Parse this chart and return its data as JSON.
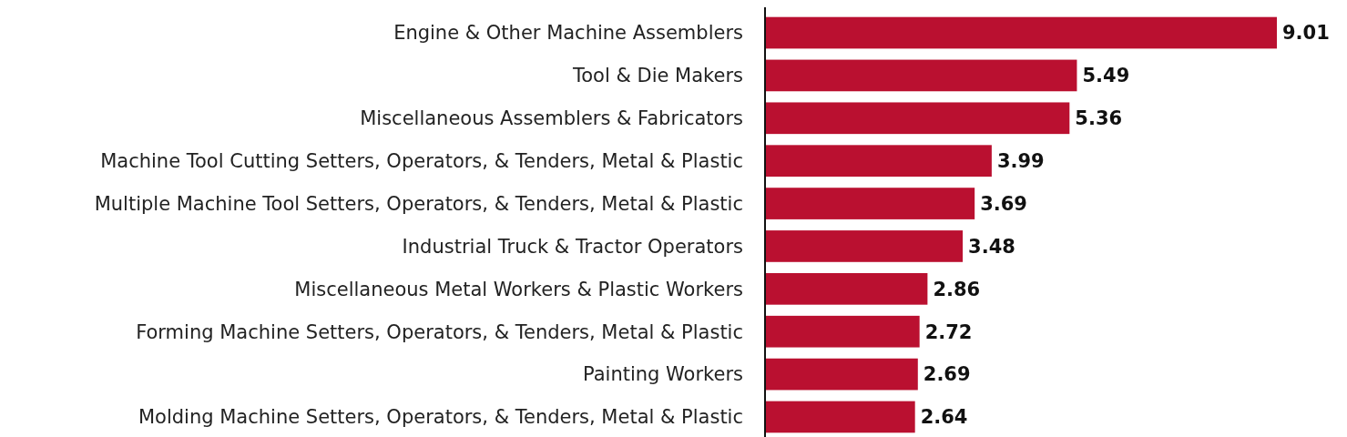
{
  "chart_data": {
    "type": "bar",
    "orientation": "horizontal",
    "categories": [
      "Engine & Other Machine Assemblers",
      "Tool & Die Makers",
      "Miscellaneous Assemblers & Fabricators",
      "Machine Tool Cutting Setters, Operators, & Tenders, Metal & Plastic",
      "Multiple Machine Tool Setters, Operators, & Tenders, Metal & Plastic",
      "Industrial Truck & Tractor Operators",
      "Miscellaneous Metal Workers & Plastic Workers",
      "Forming Machine Setters, Operators, & Tenders, Metal & Plastic",
      "Painting Workers",
      "Molding Machine Setters, Operators, & Tenders, Metal & Plastic"
    ],
    "values": [
      9.01,
      5.49,
      5.36,
      3.99,
      3.69,
      3.48,
      2.86,
      2.72,
      2.69,
      2.64
    ],
    "color": "#ba1030",
    "data_labels": true
  }
}
